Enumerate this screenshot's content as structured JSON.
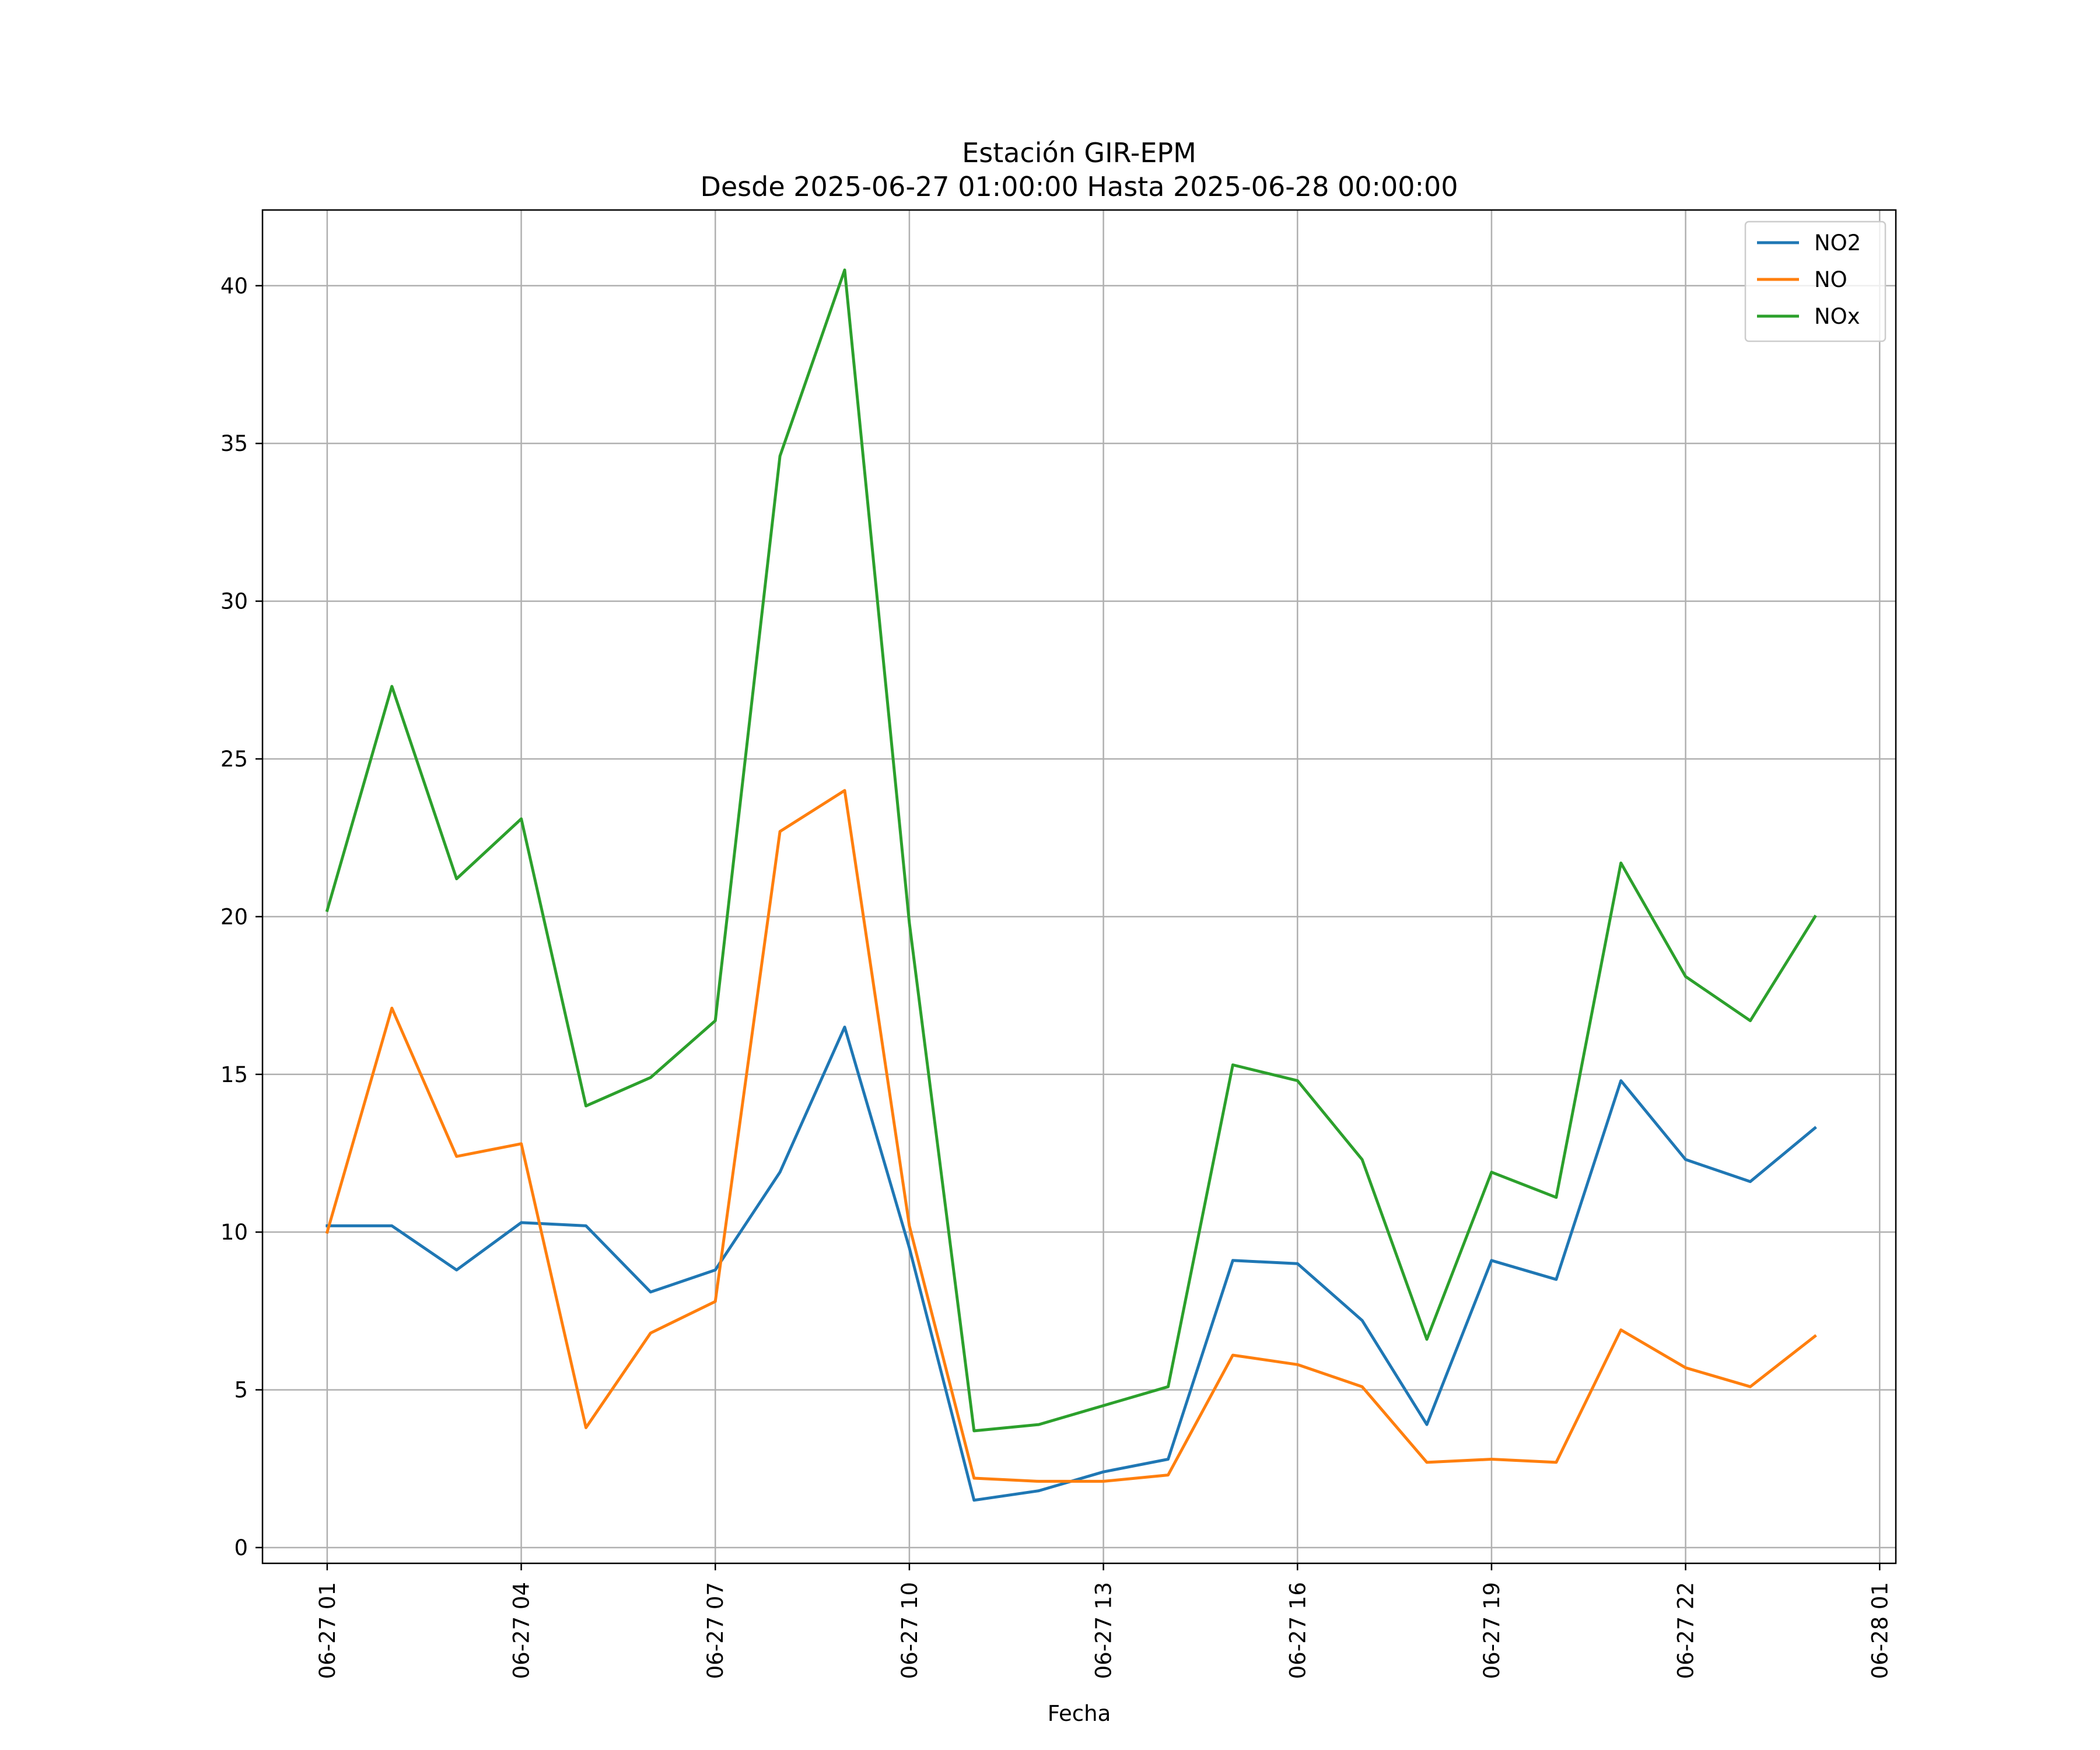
{
  "chart_data": {
    "type": "line",
    "title": "Estación GIR-EPM",
    "subtitle": "Desde 2025-06-27 01:00:00 Hasta 2025-06-28 00:00:00",
    "xlabel": "Fecha",
    "ylabel": "",
    "x_tick_labels": [
      "06-27 01",
      "06-27 04",
      "06-27 07",
      "06-27 10",
      "06-27 13",
      "06-27 16",
      "06-27 19",
      "06-27 22",
      "06-28 01"
    ],
    "y_ticks": [
      0,
      5,
      10,
      15,
      20,
      25,
      30,
      35,
      40
    ],
    "ylim": [
      -0.5,
      42.4
    ],
    "xlim": [
      "2025-06-27 00:00",
      "2025-06-28 01:15"
    ],
    "grid": true,
    "legend_position": "top-right",
    "x": [
      "2025-06-27 01:00",
      "2025-06-27 02:00",
      "2025-06-27 03:00",
      "2025-06-27 04:00",
      "2025-06-27 05:00",
      "2025-06-27 06:00",
      "2025-06-27 07:00",
      "2025-06-27 08:00",
      "2025-06-27 09:00",
      "2025-06-27 10:00",
      "2025-06-27 11:00",
      "2025-06-27 12:00",
      "2025-06-27 13:00",
      "2025-06-27 14:00",
      "2025-06-27 15:00",
      "2025-06-27 16:00",
      "2025-06-27 17:00",
      "2025-06-27 18:00",
      "2025-06-27 19:00",
      "2025-06-27 20:00",
      "2025-06-27 21:00",
      "2025-06-27 22:00",
      "2025-06-27 23:00",
      "2025-06-28 00:00"
    ],
    "series": [
      {
        "name": "NO2",
        "color": "#1f77b4",
        "values": [
          10.2,
          10.2,
          8.8,
          10.3,
          10.2,
          8.1,
          8.8,
          11.9,
          16.5,
          9.5,
          1.5,
          1.8,
          2.4,
          2.8,
          9.1,
          9.0,
          7.2,
          3.9,
          9.1,
          8.5,
          14.8,
          12.3,
          11.6,
          13.3
        ]
      },
      {
        "name": "NO",
        "color": "#ff7f0e",
        "values": [
          10.0,
          17.1,
          12.4,
          12.8,
          3.8,
          6.8,
          7.8,
          22.7,
          24.0,
          10.2,
          2.2,
          2.1,
          2.1,
          2.3,
          6.1,
          5.8,
          5.1,
          2.7,
          2.8,
          2.7,
          6.9,
          5.7,
          5.1,
          6.7
        ]
      },
      {
        "name": "NOx",
        "color": "#2ca02c",
        "values": [
          20.2,
          27.3,
          21.2,
          23.1,
          14.0,
          14.9,
          16.7,
          34.6,
          40.5,
          19.8,
          3.7,
          3.9,
          4.5,
          5.1,
          15.3,
          14.8,
          12.3,
          6.6,
          11.9,
          11.1,
          21.7,
          18.1,
          16.7,
          20.0
        ]
      }
    ]
  }
}
